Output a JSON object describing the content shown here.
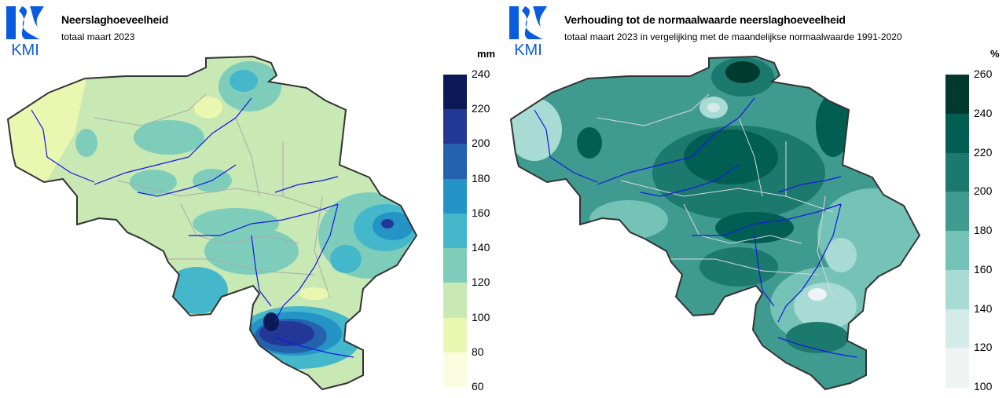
{
  "logo": {
    "text": "KMI",
    "color": "#0a5be0"
  },
  "maps": [
    {
      "title": "Neerslaghoeveelheid",
      "subtitle": "totaal maart 2023",
      "unit": "mm",
      "legend_ticks": [
        "240",
        "220",
        "200",
        "180",
        "160",
        "140",
        "120",
        "100",
        "80",
        "60"
      ],
      "legend_colors": [
        "#0b1a57",
        "#233896",
        "#2462ae",
        "#2494c6",
        "#45b7cb",
        "#7ecdbb",
        "#c8e8b4",
        "#eaf7b0",
        "#fbfde0"
      ]
    },
    {
      "title": "Verhouding tot de normaalwaarde neerslaghoeveelheid",
      "subtitle": "totaal maart 2023 in vergelijking met de maandelijkse normaalwaarde 1991-2020",
      "unit": "%",
      "legend_ticks": [
        "260",
        "240",
        "220",
        "200",
        "180",
        "160",
        "140",
        "120",
        "100"
      ],
      "legend_colors": [
        "#00392e",
        "#005e52",
        "#1b7a6d",
        "#3f9b8f",
        "#75c2b7",
        "#a8dbd3",
        "#d3ece9",
        "#eef3f3"
      ]
    }
  ]
}
